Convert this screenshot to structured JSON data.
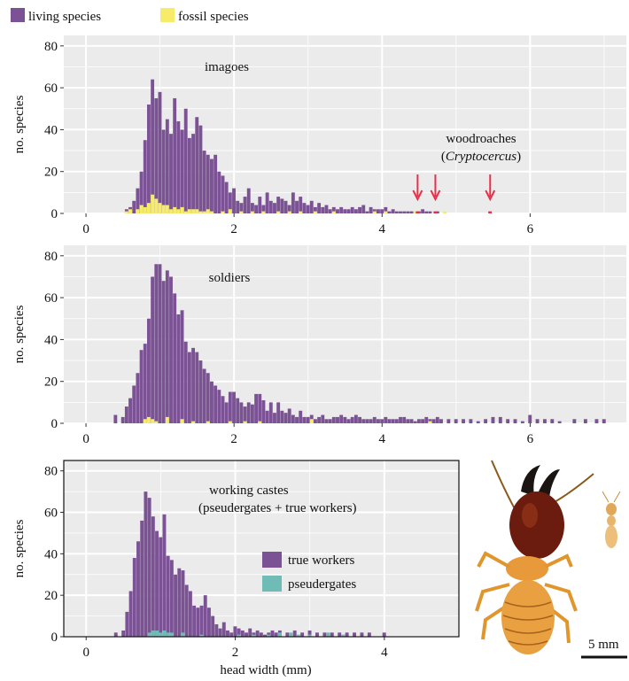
{
  "colors": {
    "living": "#7b5294",
    "fossil": "#f6ec6a",
    "true_workers": "#7b5294",
    "pseudergates": "#6fbcb6",
    "arrow": "#e8304a",
    "panel_bg": "#ebebeb",
    "grid": "#ffffff"
  },
  "legend": {
    "items": [
      {
        "label": "living species",
        "color": "#7b5294"
      },
      {
        "label": "fossil species",
        "color": "#f6ec6a"
      }
    ]
  },
  "xlabel": "head width (mm)",
  "ylabel": "no. species",
  "scale_bar_label": "5 mm",
  "photo": {
    "alt": "termite soldier and worker specimen",
    "icon": "termite-photo"
  },
  "chart_data": [
    {
      "type": "bar",
      "id": "imagoes",
      "panel_label": "imagoes",
      "annotation": [
        "woodroaches",
        "(",
        "Cryptocercus",
        ")"
      ],
      "xlim": [
        -0.3,
        7.3
      ],
      "ylim": [
        0,
        85
      ],
      "xticks": [
        0,
        2,
        4,
        6
      ],
      "yticks": [
        0,
        20,
        40,
        60,
        80
      ],
      "bin_width": 0.05,
      "series": [
        {
          "name": "living species",
          "x": [
            0.55,
            0.6,
            0.65,
            0.7,
            0.75,
            0.8,
            0.85,
            0.9,
            0.95,
            1.0,
            1.05,
            1.1,
            1.15,
            1.2,
            1.25,
            1.3,
            1.35,
            1.4,
            1.45,
            1.5,
            1.55,
            1.6,
            1.65,
            1.7,
            1.75,
            1.8,
            1.85,
            1.9,
            1.95,
            2.0,
            2.05,
            2.1,
            2.15,
            2.2,
            2.25,
            2.3,
            2.35,
            2.4,
            2.45,
            2.5,
            2.55,
            2.6,
            2.65,
            2.7,
            2.75,
            2.8,
            2.85,
            2.9,
            2.95,
            3.0,
            3.05,
            3.1,
            3.15,
            3.2,
            3.25,
            3.3,
            3.35,
            3.4,
            3.45,
            3.5,
            3.55,
            3.6,
            3.65,
            3.7,
            3.75,
            3.8,
            3.85,
            3.9,
            3.95,
            4.0,
            4.05,
            4.1,
            4.15,
            4.2,
            4.25,
            4.3,
            4.35,
            4.4,
            4.5,
            4.55,
            4.6,
            4.65,
            4.75
          ],
          "values": [
            2,
            3,
            6,
            12,
            20,
            35,
            52,
            64,
            55,
            58,
            40,
            45,
            38,
            55,
            44,
            40,
            50,
            36,
            38,
            46,
            42,
            30,
            28,
            26,
            28,
            20,
            18,
            15,
            10,
            12,
            6,
            5,
            8,
            12,
            5,
            4,
            8,
            4,
            10,
            6,
            5,
            8,
            7,
            6,
            4,
            10,
            6,
            8,
            5,
            4,
            6,
            3,
            5,
            3,
            4,
            2,
            3,
            2,
            3,
            2,
            2,
            3,
            2,
            3,
            4,
            1,
            3,
            2,
            2,
            2,
            3,
            1,
            2,
            1,
            1,
            1,
            1,
            1,
            1,
            2,
            1,
            1,
            1
          ]
        },
        {
          "name": "fossil species",
          "x": [
            0.55,
            0.6,
            0.7,
            0.75,
            0.8,
            0.85,
            0.9,
            0.95,
            1.0,
            1.05,
            1.1,
            1.15,
            1.2,
            1.25,
            1.3,
            1.35,
            1.4,
            1.45,
            1.5,
            1.55,
            1.6,
            1.65,
            1.7,
            1.85,
            1.95,
            2.1,
            2.25,
            2.4,
            2.6,
            2.75,
            2.9,
            3.1,
            3.35,
            3.9,
            4.05,
            4.45,
            4.85
          ],
          "values": [
            1,
            2,
            2,
            4,
            3,
            5,
            9,
            7,
            5,
            4,
            4,
            2,
            3,
            2,
            3,
            1,
            2,
            2,
            2,
            1,
            1,
            2,
            1,
            1,
            2,
            1,
            1,
            1,
            1,
            1,
            1,
            1,
            1,
            1,
            1,
            1,
            1
          ]
        },
        {
          "name": "woodroaches (Cryptocercus)",
          "x": [
            4.48,
            4.72,
            5.46
          ],
          "values": [
            1,
            1,
            1
          ]
        }
      ]
    },
    {
      "type": "bar",
      "id": "soldiers",
      "panel_label": "soldiers",
      "xlim": [
        -0.3,
        7.3
      ],
      "ylim": [
        0,
        85
      ],
      "xticks": [
        0,
        2,
        4,
        6
      ],
      "yticks": [
        0,
        20,
        40,
        60,
        80
      ],
      "bin_width": 0.05,
      "series": [
        {
          "name": "living species",
          "x": [
            0.4,
            0.5,
            0.55,
            0.6,
            0.65,
            0.7,
            0.75,
            0.8,
            0.85,
            0.9,
            0.95,
            1.0,
            1.05,
            1.1,
            1.15,
            1.2,
            1.25,
            1.3,
            1.35,
            1.4,
            1.45,
            1.5,
            1.55,
            1.6,
            1.65,
            1.7,
            1.75,
            1.8,
            1.85,
            1.9,
            1.95,
            2.0,
            2.05,
            2.1,
            2.15,
            2.2,
            2.25,
            2.3,
            2.35,
            2.4,
            2.45,
            2.5,
            2.55,
            2.6,
            2.65,
            2.7,
            2.75,
            2.8,
            2.85,
            2.9,
            2.95,
            3.0,
            3.05,
            3.1,
            3.15,
            3.2,
            3.25,
            3.3,
            3.35,
            3.4,
            3.45,
            3.5,
            3.55,
            3.6,
            3.65,
            3.7,
            3.75,
            3.8,
            3.85,
            3.9,
            3.95,
            4.0,
            4.05,
            4.1,
            4.15,
            4.2,
            4.25,
            4.3,
            4.35,
            4.4,
            4.45,
            4.5,
            4.55,
            4.6,
            4.65,
            4.7,
            4.75,
            4.8,
            4.9,
            5.0,
            5.1,
            5.2,
            5.3,
            5.4,
            5.5,
            5.6,
            5.7,
            5.8,
            5.9,
            6.0,
            6.1,
            6.2,
            6.3,
            6.4,
            6.6,
            6.75,
            6.9,
            7.0
          ],
          "values": [
            4,
            3,
            8,
            12,
            18,
            24,
            35,
            38,
            50,
            70,
            76,
            76,
            68,
            73,
            70,
            62,
            52,
            54,
            39,
            34,
            36,
            34,
            30,
            26,
            24,
            20,
            18,
            16,
            13,
            10,
            15,
            15,
            12,
            10,
            8,
            10,
            9,
            14,
            14,
            11,
            6,
            10,
            5,
            10,
            6,
            5,
            7,
            4,
            3,
            6,
            3,
            3,
            4,
            2,
            3,
            4,
            2,
            2,
            3,
            3,
            4,
            3,
            2,
            3,
            4,
            3,
            2,
            2,
            2,
            3,
            2,
            2,
            3,
            2,
            2,
            2,
            3,
            3,
            2,
            2,
            1,
            2,
            2,
            3,
            2,
            2,
            3,
            2,
            2,
            2,
            2,
            2,
            1,
            2,
            3,
            3,
            2,
            2,
            1,
            4,
            2,
            2,
            2,
            1,
            2,
            2,
            2,
            2
          ]
        },
        {
          "name": "fossil species",
          "x": [
            0.8,
            0.85,
            0.9,
            0.95,
            1.1,
            1.3,
            1.45,
            1.65,
            1.95,
            2.15,
            2.35,
            3.05,
            4.65
          ],
          "values": [
            2,
            3,
            2,
            1,
            3,
            2,
            1,
            1,
            1,
            1,
            1,
            2,
            1
          ]
        }
      ]
    },
    {
      "type": "bar",
      "id": "working-castes",
      "panel_label": [
        "working castes",
        "(pseudergates + true workers)"
      ],
      "legend": [
        {
          "label": "true workers",
          "color": "#7b5294"
        },
        {
          "label": "pseudergates",
          "color": "#6fbcb6"
        }
      ],
      "xlim": [
        -0.3,
        5.0
      ],
      "ylim": [
        0,
        85
      ],
      "xticks": [
        0,
        2,
        4
      ],
      "yticks": [
        0,
        20,
        40,
        60,
        80
      ],
      "bin_width": 0.05,
      "series": [
        {
          "name": "true workers",
          "x": [
            0.4,
            0.5,
            0.55,
            0.6,
            0.65,
            0.7,
            0.75,
            0.8,
            0.85,
            0.9,
            0.95,
            1.0,
            1.05,
            1.1,
            1.15,
            1.2,
            1.25,
            1.3,
            1.35,
            1.4,
            1.45,
            1.5,
            1.55,
            1.6,
            1.65,
            1.7,
            1.75,
            1.8,
            1.85,
            1.9,
            1.95,
            2.0,
            2.05,
            2.1,
            2.15,
            2.2,
            2.25,
            2.3,
            2.35,
            2.4,
            2.45,
            2.5,
            2.55,
            2.6,
            2.7,
            2.8,
            2.9,
            3.0,
            3.1,
            3.2,
            3.3,
            3.4,
            3.5,
            3.6,
            3.7,
            3.8,
            4.0
          ],
          "values": [
            2,
            3,
            12,
            22,
            38,
            46,
            56,
            70,
            67,
            58,
            51,
            48,
            59,
            39,
            37,
            30,
            33,
            32,
            25,
            22,
            15,
            14,
            15,
            20,
            14,
            10,
            6,
            4,
            7,
            3,
            2,
            5,
            4,
            3,
            2,
            4,
            2,
            3,
            2,
            1,
            2,
            3,
            2,
            3,
            2,
            3,
            2,
            3,
            2,
            2,
            2,
            2,
            2,
            2,
            2,
            2,
            2
          ]
        },
        {
          "name": "pseudergates",
          "x": [
            0.85,
            0.9,
            0.95,
            1.0,
            1.05,
            1.1,
            1.15,
            1.3,
            1.55,
            2.05,
            2.25,
            2.45,
            2.6,
            2.75,
            2.85,
            3.0,
            3.25,
            3.45
          ],
          "values": [
            2,
            3,
            3,
            2,
            3,
            2,
            2,
            2,
            1,
            1,
            1,
            1,
            2,
            2,
            1,
            1,
            2,
            1
          ]
        }
      ]
    }
  ]
}
